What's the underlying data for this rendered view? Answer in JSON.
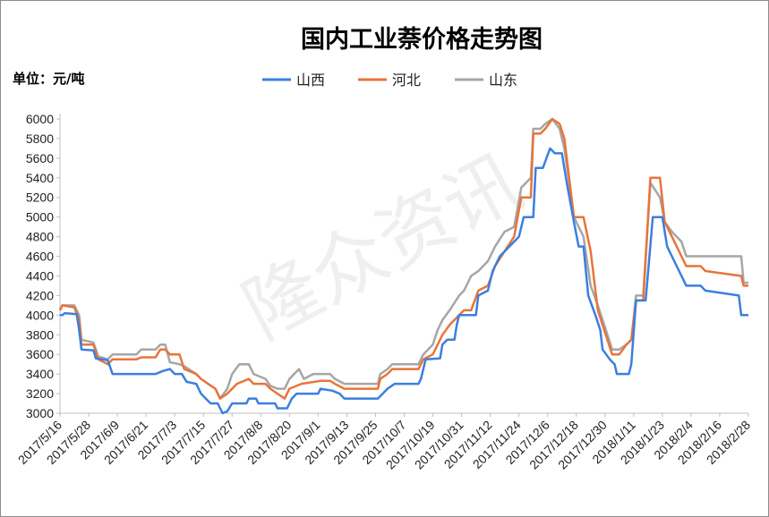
{
  "chart_data": {
    "type": "line",
    "title": "国内工业萘价格走势图",
    "unit_label": "单位：元/吨",
    "watermark": "隆众资讯",
    "legend_position": "top-center",
    "ylim": [
      3000,
      6000
    ],
    "yticks": [
      3000,
      3200,
      3400,
      3600,
      3800,
      4000,
      4200,
      4400,
      4600,
      4800,
      5000,
      5200,
      5400,
      5600,
      5800,
      6000
    ],
    "x_range": [
      "2017/5/16",
      "2018/2/28"
    ],
    "xticks": [
      "2017/5/16",
      "2017/5/28",
      "2017/6/9",
      "2017/6/21",
      "2017/7/3",
      "2017/7/15",
      "2017/7/27",
      "2017/8/8",
      "2017/8/20",
      "2017/9/1",
      "2017/9/13",
      "2017/9/25",
      "2017/10/7",
      "2017/10/19",
      "2017/10/31",
      "2017/11/12",
      "2017/11/24",
      "2017/12/6",
      "2017/12/18",
      "2017/12/30",
      "2018/1/11",
      "2018/1/23",
      "2018/2/4",
      "2018/2/16",
      "2018/2/28"
    ],
    "series": [
      {
        "name": "山西",
        "color": "#3b7fe0",
        "points": [
          [
            "2017/5/16",
            4000
          ],
          [
            "2017/5/17",
            4000
          ],
          [
            "2017/5/18",
            4020
          ],
          [
            "2017/5/23",
            4010
          ],
          [
            "2017/5/24",
            3850
          ],
          [
            "2017/5/25",
            3650
          ],
          [
            "2017/5/30",
            3640
          ],
          [
            "2017/5/31",
            3560
          ],
          [
            "2017/6/5",
            3540
          ],
          [
            "2017/6/7",
            3400
          ],
          [
            "2017/6/25",
            3400
          ],
          [
            "2017/6/28",
            3430
          ],
          [
            "2017/7/1",
            3450
          ],
          [
            "2017/7/3",
            3400
          ],
          [
            "2017/7/6",
            3400
          ],
          [
            "2017/7/8",
            3320
          ],
          [
            "2017/7/12",
            3300
          ],
          [
            "2017/7/14",
            3200
          ],
          [
            "2017/7/18",
            3100
          ],
          [
            "2017/7/21",
            3100
          ],
          [
            "2017/7/23",
            3000
          ],
          [
            "2017/7/25",
            3020
          ],
          [
            "2017/7/27",
            3100
          ],
          [
            "2017/8/2",
            3100
          ],
          [
            "2017/8/3",
            3150
          ],
          [
            "2017/8/6",
            3150
          ],
          [
            "2017/8/7",
            3100
          ],
          [
            "2017/8/14",
            3100
          ],
          [
            "2017/8/15",
            3050
          ],
          [
            "2017/8/19",
            3050
          ],
          [
            "2017/8/21",
            3150
          ],
          [
            "2017/8/23",
            3200
          ],
          [
            "2017/9/1",
            3200
          ],
          [
            "2017/9/2",
            3250
          ],
          [
            "2017/9/7",
            3230
          ],
          [
            "2017/9/10",
            3200
          ],
          [
            "2017/9/12",
            3150
          ],
          [
            "2017/9/26",
            3150
          ],
          [
            "2017/9/28",
            3200
          ],
          [
            "2017/9/30",
            3250
          ],
          [
            "2017/10/3",
            3300
          ],
          [
            "2017/10/13",
            3300
          ],
          [
            "2017/10/14",
            3350
          ],
          [
            "2017/10/16",
            3550
          ],
          [
            "2017/10/22",
            3560
          ],
          [
            "2017/10/23",
            3700
          ],
          [
            "2017/10/25",
            3750
          ],
          [
            "2017/10/28",
            3750
          ],
          [
            "2017/10/29",
            3900
          ],
          [
            "2017/10/30",
            4000
          ],
          [
            "2017/11/6",
            4000
          ],
          [
            "2017/11/7",
            4200
          ],
          [
            "2017/11/11",
            4250
          ],
          [
            "2017/11/13",
            4450
          ],
          [
            "2017/11/16",
            4600
          ],
          [
            "2017/11/20",
            4700
          ],
          [
            "2017/11/24",
            4800
          ],
          [
            "2017/11/26",
            5000
          ],
          [
            "2017/11/30",
            5000
          ],
          [
            "2017/12/1",
            5500
          ],
          [
            "2017/12/4",
            5500
          ],
          [
            "2017/12/7",
            5700
          ],
          [
            "2017/12/9",
            5650
          ],
          [
            "2017/12/12",
            5650
          ],
          [
            "2017/12/14",
            5350
          ],
          [
            "2017/12/17",
            4950
          ],
          [
            "2017/12/19",
            4700
          ],
          [
            "2017/12/21",
            4700
          ],
          [
            "2017/12/23",
            4200
          ],
          [
            "2017/12/26",
            4000
          ],
          [
            "2017/12/28",
            3850
          ],
          [
            "2017/12/29",
            3650
          ],
          [
            "2018/1/1",
            3550
          ],
          [
            "2018/1/3",
            3500
          ],
          [
            "2018/1/4",
            3400
          ],
          [
            "2018/1/9",
            3400
          ],
          [
            "2018/1/10",
            3500
          ],
          [
            "2018/1/12",
            4150
          ],
          [
            "2018/1/16",
            4150
          ],
          [
            "2018/1/19",
            5000
          ],
          [
            "2018/1/23",
            5000
          ],
          [
            "2018/1/25",
            4700
          ],
          [
            "2018/1/28",
            4550
          ],
          [
            "2018/2/2",
            4300
          ],
          [
            "2018/2/8",
            4300
          ],
          [
            "2018/2/10",
            4250
          ],
          [
            "2018/2/24",
            4200
          ],
          [
            "2018/2/25",
            4000
          ],
          [
            "2018/2/28",
            4000
          ]
        ]
      },
      {
        "name": "河北",
        "color": "#e8743b",
        "points": [
          [
            "2017/5/16",
            4050
          ],
          [
            "2017/5/17",
            4100
          ],
          [
            "2017/5/22",
            4080
          ],
          [
            "2017/5/24",
            3950
          ],
          [
            "2017/5/25",
            3700
          ],
          [
            "2017/5/30",
            3700
          ],
          [
            "2017/6/1",
            3550
          ],
          [
            "2017/6/5",
            3500
          ],
          [
            "2017/6/7",
            3550
          ],
          [
            "2017/6/17",
            3550
          ],
          [
            "2017/6/19",
            3570
          ],
          [
            "2017/6/25",
            3570
          ],
          [
            "2017/6/27",
            3650
          ],
          [
            "2017/6/29",
            3650
          ],
          [
            "2017/7/1",
            3600
          ],
          [
            "2017/7/5",
            3600
          ],
          [
            "2017/7/7",
            3450
          ],
          [
            "2017/7/12",
            3400
          ],
          [
            "2017/7/14",
            3350
          ],
          [
            "2017/7/17",
            3300
          ],
          [
            "2017/7/20",
            3250
          ],
          [
            "2017/7/22",
            3150
          ],
          [
            "2017/7/25",
            3200
          ],
          [
            "2017/7/27",
            3250
          ],
          [
            "2017/7/29",
            3300
          ],
          [
            "2017/8/3",
            3350
          ],
          [
            "2017/8/5",
            3300
          ],
          [
            "2017/8/10",
            3300
          ],
          [
            "2017/8/12",
            3250
          ],
          [
            "2017/8/15",
            3200
          ],
          [
            "2017/8/18",
            3150
          ],
          [
            "2017/8/20",
            3250
          ],
          [
            "2017/8/25",
            3300
          ],
          [
            "2017/9/2",
            3330
          ],
          [
            "2017/9/6",
            3330
          ],
          [
            "2017/9/8",
            3300
          ],
          [
            "2017/9/12",
            3250
          ],
          [
            "2017/9/26",
            3250
          ],
          [
            "2017/9/27",
            3350
          ],
          [
            "2017/9/30",
            3400
          ],
          [
            "2017/10/2",
            3450
          ],
          [
            "2017/10/13",
            3450
          ],
          [
            "2017/10/15",
            3550
          ],
          [
            "2017/10/19",
            3600
          ],
          [
            "2017/10/21",
            3700
          ],
          [
            "2017/10/23",
            3800
          ],
          [
            "2017/10/26",
            3900
          ],
          [
            "2017/10/30",
            4000
          ],
          [
            "2017/11/1",
            4050
          ],
          [
            "2017/11/4",
            4050
          ],
          [
            "2017/11/7",
            4250
          ],
          [
            "2017/11/11",
            4300
          ],
          [
            "2017/11/14",
            4500
          ],
          [
            "2017/11/18",
            4650
          ],
          [
            "2017/11/22",
            4800
          ],
          [
            "2017/11/25",
            5200
          ],
          [
            "2017/11/29",
            5200
          ],
          [
            "2017/11/30",
            5850
          ],
          [
            "2017/12/3",
            5850
          ],
          [
            "2017/12/5",
            5900
          ],
          [
            "2017/12/8",
            6000
          ],
          [
            "2017/12/11",
            5950
          ],
          [
            "2017/12/13",
            5800
          ],
          [
            "2017/12/17",
            5000
          ],
          [
            "2017/12/21",
            5000
          ],
          [
            "2017/12/24",
            4650
          ],
          [
            "2017/12/27",
            4050
          ],
          [
            "2017/12/31",
            3750
          ],
          [
            "2018/1/2",
            3600
          ],
          [
            "2018/1/5",
            3600
          ],
          [
            "2018/1/8",
            3700
          ],
          [
            "2018/1/10",
            3750
          ],
          [
            "2018/1/12",
            4150
          ],
          [
            "2018/1/15",
            4150
          ],
          [
            "2018/1/18",
            5400
          ],
          [
            "2018/1/22",
            5400
          ],
          [
            "2018/1/24",
            4950
          ],
          [
            "2018/1/27",
            4800
          ],
          [
            "2018/1/31",
            4600
          ],
          [
            "2018/2/2",
            4500
          ],
          [
            "2018/2/8",
            4500
          ],
          [
            "2018/2/10",
            4450
          ],
          [
            "2018/2/25",
            4400
          ],
          [
            "2018/2/26",
            4300
          ],
          [
            "2018/2/28",
            4300
          ]
        ]
      },
      {
        "name": "山东",
        "color": "#a6a6a6",
        "points": [
          [
            "2017/5/16",
            4060
          ],
          [
            "2017/5/17",
            4100
          ],
          [
            "2017/5/22",
            4100
          ],
          [
            "2017/5/24",
            4000
          ],
          [
            "2017/5/25",
            3750
          ],
          [
            "2017/5/30",
            3720
          ],
          [
            "2017/6/1",
            3580
          ],
          [
            "2017/6/5",
            3550
          ],
          [
            "2017/6/7",
            3600
          ],
          [
            "2017/6/17",
            3600
          ],
          [
            "2017/6/19",
            3650
          ],
          [
            "2017/6/25",
            3650
          ],
          [
            "2017/6/27",
            3700
          ],
          [
            "2017/6/29",
            3700
          ],
          [
            "2017/7/1",
            3520
          ],
          [
            "2017/7/5",
            3500
          ],
          [
            "2017/7/7",
            3480
          ],
          [
            "2017/7/12",
            3400
          ],
          [
            "2017/7/14",
            3350
          ],
          [
            "2017/7/17",
            3300
          ],
          [
            "2017/7/20",
            3250
          ],
          [
            "2017/7/22",
            3150
          ],
          [
            "2017/7/25",
            3250
          ],
          [
            "2017/7/27",
            3400
          ],
          [
            "2017/7/30",
            3500
          ],
          [
            "2017/8/3",
            3500
          ],
          [
            "2017/8/5",
            3400
          ],
          [
            "2017/8/10",
            3350
          ],
          [
            "2017/8/12",
            3280
          ],
          [
            "2017/8/15",
            3250
          ],
          [
            "2017/8/18",
            3250
          ],
          [
            "2017/8/20",
            3350
          ],
          [
            "2017/8/24",
            3450
          ],
          [
            "2017/8/26",
            3350
          ],
          [
            "2017/8/30",
            3400
          ],
          [
            "2017/9/6",
            3400
          ],
          [
            "2017/9/8",
            3350
          ],
          [
            "2017/9/12",
            3300
          ],
          [
            "2017/9/26",
            3300
          ],
          [
            "2017/9/27",
            3400
          ],
          [
            "2017/9/30",
            3450
          ],
          [
            "2017/10/2",
            3500
          ],
          [
            "2017/10/13",
            3500
          ],
          [
            "2017/10/15",
            3600
          ],
          [
            "2017/10/19",
            3700
          ],
          [
            "2017/10/21",
            3850
          ],
          [
            "2017/10/23",
            3950
          ],
          [
            "2017/10/26",
            4050
          ],
          [
            "2017/10/30",
            4200
          ],
          [
            "2017/11/1",
            4250
          ],
          [
            "2017/11/4",
            4400
          ],
          [
            "2017/11/7",
            4450
          ],
          [
            "2017/11/11",
            4550
          ],
          [
            "2017/11/14",
            4700
          ],
          [
            "2017/11/18",
            4850
          ],
          [
            "2017/11/22",
            4900
          ],
          [
            "2017/11/25",
            5300
          ],
          [
            "2017/11/29",
            5400
          ],
          [
            "2017/11/30",
            5900
          ],
          [
            "2017/12/3",
            5900
          ],
          [
            "2017/12/5",
            5950
          ],
          [
            "2017/12/8",
            6000
          ],
          [
            "2017/12/11",
            5900
          ],
          [
            "2017/12/13",
            5700
          ],
          [
            "2017/12/17",
            5000
          ],
          [
            "2017/12/21",
            4800
          ],
          [
            "2017/12/24",
            4300
          ],
          [
            "2017/12/27",
            4100
          ],
          [
            "2017/12/31",
            3800
          ],
          [
            "2018/1/2",
            3650
          ],
          [
            "2018/1/5",
            3650
          ],
          [
            "2018/1/8",
            3700
          ],
          [
            "2018/1/10",
            3750
          ],
          [
            "2018/1/12",
            4200
          ],
          [
            "2018/1/15",
            4200
          ],
          [
            "2018/1/18",
            5350
          ],
          [
            "2018/1/22",
            5200
          ],
          [
            "2018/1/24",
            4950
          ],
          [
            "2018/1/27",
            4850
          ],
          [
            "2018/1/31",
            4750
          ],
          [
            "2018/2/2",
            4600
          ],
          [
            "2018/2/25",
            4600
          ],
          [
            "2018/2/26",
            4330
          ],
          [
            "2018/2/28",
            4330
          ]
        ]
      }
    ]
  }
}
